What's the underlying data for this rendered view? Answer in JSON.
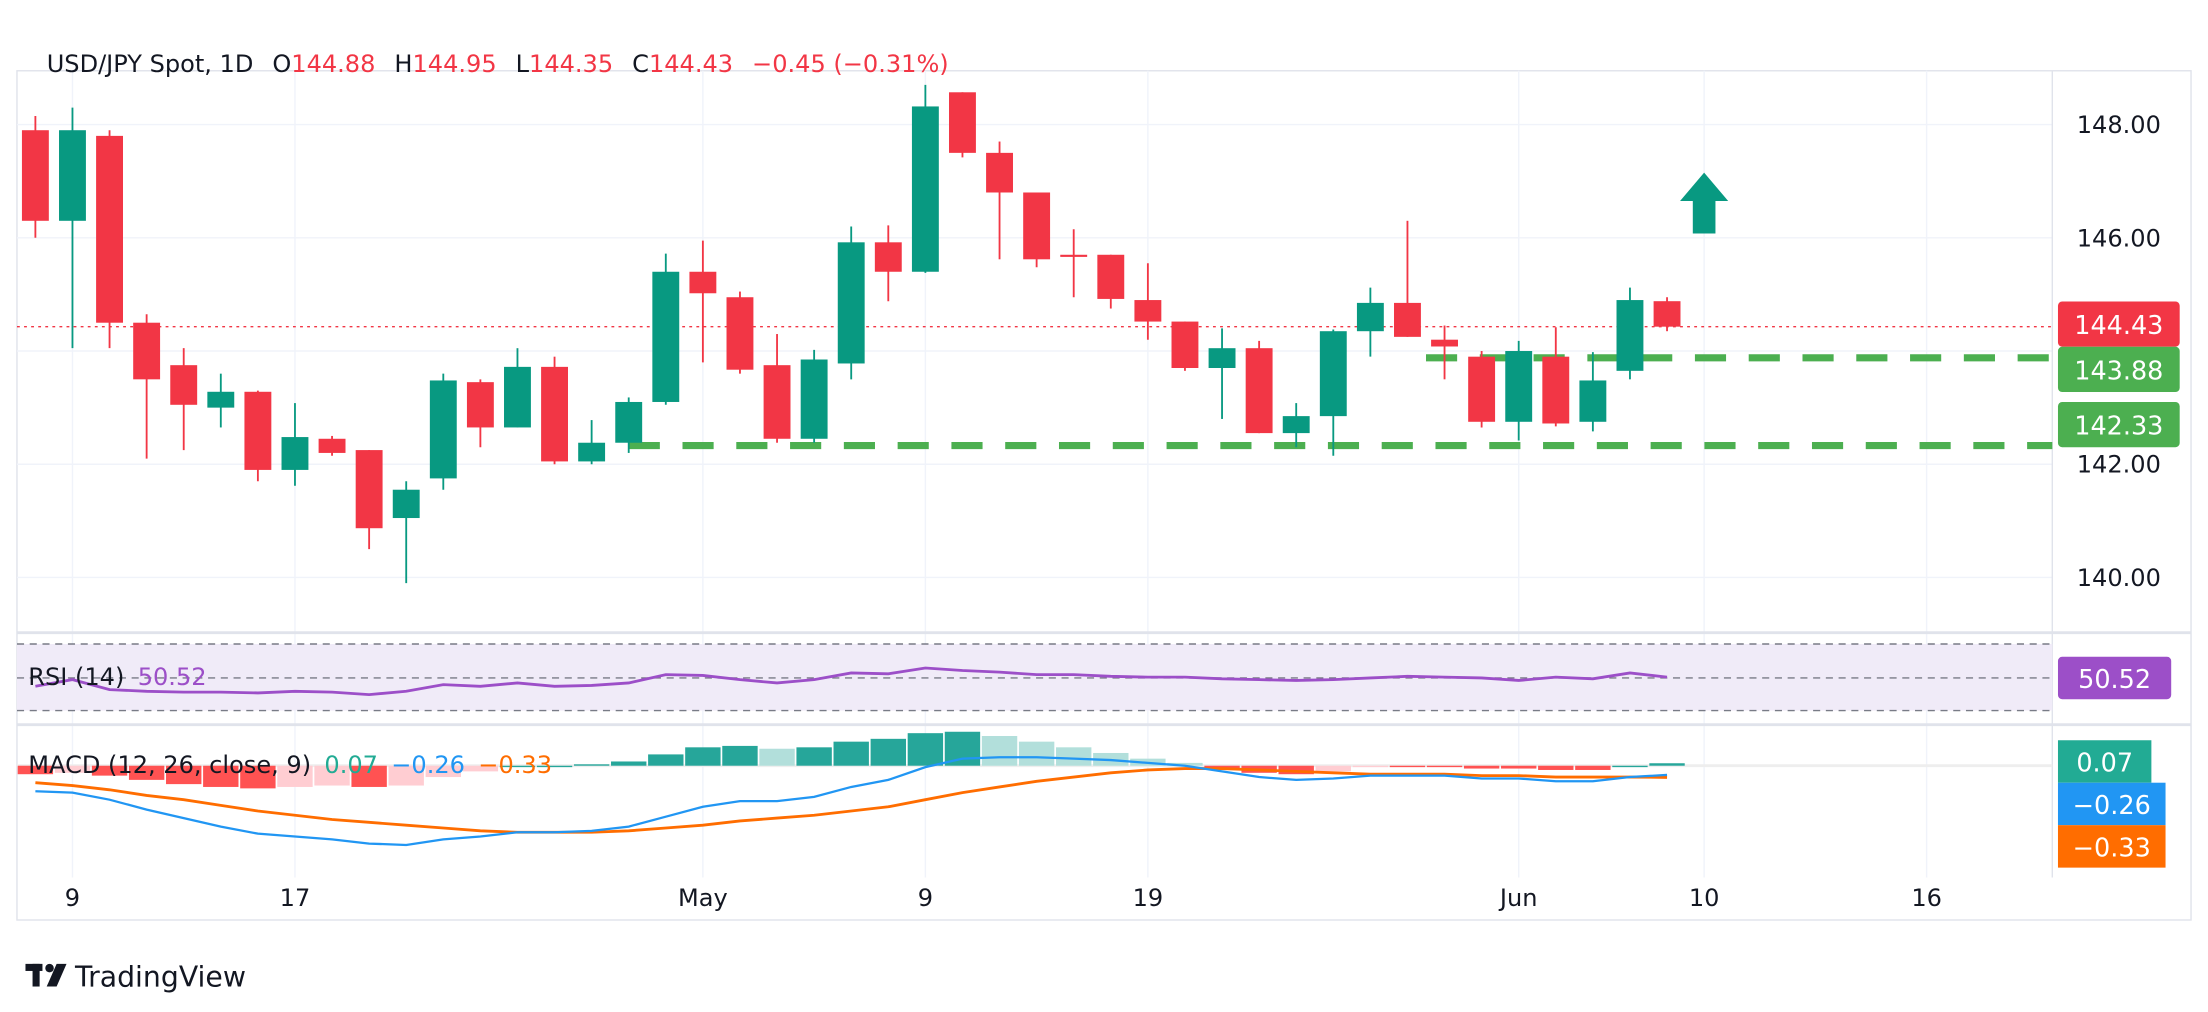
{
  "header": {
    "symbol": "USD/JPY Spot, 1D",
    "o_label": "O",
    "o_value": "144.88",
    "h_label": "H",
    "h_value": "144.95",
    "l_label": "L",
    "l_value": "144.35",
    "c_label": "C",
    "c_value": "144.43",
    "change": "−0.45 (−0.31%)"
  },
  "colors": {
    "up": "#089981",
    "down": "#f23645",
    "level": "#4caf50",
    "rsi": "#9c4fc8",
    "macd": "#2196f3",
    "signal": "#ff6d00",
    "hist_up": "#26a69a",
    "hist_up_light": "#b2dfdb",
    "hist_down": "#ff5252",
    "hist_down_light": "#ffcdd2"
  },
  "price_axis": {
    "ticks": [
      "148.00",
      "146.00",
      "142.00",
      "140.00"
    ],
    "tick_values": [
      148,
      146,
      142,
      140
    ]
  },
  "price_labels": {
    "last": "144.43",
    "level1": "143.88",
    "level2": "142.33"
  },
  "rsi": {
    "label": "RSI (14)",
    "value": "50.52"
  },
  "macd": {
    "label": "MACD (12, 26, close, 9)",
    "hist_value": "0.07",
    "macd_value": "−0.26",
    "signal_value": "−0.33"
  },
  "time_axis": [
    {
      "label": "9",
      "index": 1
    },
    {
      "label": "17",
      "index": 7
    },
    {
      "label": "May",
      "index": 18
    },
    {
      "label": "9",
      "index": 24
    },
    {
      "label": "19",
      "index": 30
    },
    {
      "label": "Jun",
      "index": 40
    },
    {
      "label": "10",
      "index": 45
    },
    {
      "label": "16",
      "index": 51
    }
  ],
  "logo": "TradingView",
  "chart_data": {
    "type": "candlestick",
    "title": "USD/JPY Spot, 1D",
    "ylim": [
      139,
      149
    ],
    "levels": [
      {
        "value": 143.88,
        "from_index": 37.5
      },
      {
        "value": 142.33,
        "from_index": 16
      }
    ],
    "last_price": 144.43,
    "arrow": {
      "direction": "up",
      "index": 45,
      "price": 146.4
    },
    "ohlc": [
      [
        147.9,
        148.15,
        146.0,
        146.3
      ],
      [
        146.3,
        148.3,
        144.05,
        147.9
      ],
      [
        147.8,
        147.9,
        144.05,
        144.5
      ],
      [
        144.5,
        144.65,
        142.1,
        143.5
      ],
      [
        143.75,
        144.05,
        142.25,
        143.05
      ],
      [
        143.0,
        143.6,
        142.65,
        143.28
      ],
      [
        143.28,
        143.3,
        141.7,
        141.9
      ],
      [
        141.9,
        143.08,
        141.62,
        142.48
      ],
      [
        142.45,
        142.5,
        142.15,
        142.2
      ],
      [
        142.25,
        142.25,
        140.5,
        140.87
      ],
      [
        141.05,
        141.7,
        139.9,
        141.55
      ],
      [
        141.75,
        143.6,
        141.55,
        143.48
      ],
      [
        143.45,
        143.5,
        142.3,
        142.65
      ],
      [
        142.65,
        144.05,
        142.65,
        143.72
      ],
      [
        143.72,
        143.9,
        142.0,
        142.05
      ],
      [
        142.05,
        142.78,
        142.0,
        142.38
      ],
      [
        142.38,
        143.18,
        142.2,
        143.1
      ],
      [
        143.1,
        145.72,
        143.05,
        145.4
      ],
      [
        145.4,
        145.95,
        143.8,
        145.02
      ],
      [
        144.95,
        145.05,
        143.6,
        143.67
      ],
      [
        143.75,
        144.3,
        142.38,
        142.45
      ],
      [
        142.45,
        144.02,
        142.38,
        143.85
      ],
      [
        143.78,
        146.2,
        143.5,
        145.92
      ],
      [
        145.92,
        146.22,
        144.88,
        145.4
      ],
      [
        145.4,
        148.7,
        145.38,
        148.32
      ],
      [
        148.57,
        148.57,
        147.42,
        147.5
      ],
      [
        147.5,
        147.7,
        145.62,
        146.8
      ],
      [
        146.8,
        146.8,
        145.48,
        145.62
      ],
      [
        145.7,
        146.15,
        144.95,
        145.68
      ],
      [
        145.7,
        145.7,
        144.75,
        144.92
      ],
      [
        144.9,
        145.55,
        144.2,
        144.52
      ],
      [
        144.52,
        144.52,
        143.65,
        143.7
      ],
      [
        143.7,
        144.4,
        142.8,
        144.05
      ],
      [
        144.05,
        144.18,
        142.55,
        142.55
      ],
      [
        142.55,
        143.08,
        142.3,
        142.85
      ],
      [
        142.85,
        144.38,
        142.15,
        144.35
      ],
      [
        144.35,
        145.12,
        143.9,
        144.85
      ],
      [
        144.85,
        146.3,
        144.25,
        144.25
      ],
      [
        144.2,
        144.45,
        143.5,
        144.08
      ],
      [
        143.9,
        144.0,
        142.65,
        142.75
      ],
      [
        142.75,
        144.18,
        142.42,
        144.0
      ],
      [
        143.9,
        144.42,
        142.67,
        142.72
      ],
      [
        142.75,
        143.98,
        142.58,
        143.48
      ],
      [
        143.65,
        145.12,
        143.5,
        144.9
      ],
      [
        144.88,
        144.95,
        144.35,
        144.43
      ]
    ],
    "rsi_values": [
      45,
      49,
      43,
      42,
      41.5,
      41.5,
      41,
      42,
      41.5,
      40,
      42,
      46,
      45,
      47,
      45,
      45.5,
      47,
      52,
      51.5,
      49,
      47,
      49,
      53,
      52.5,
      56,
      54.5,
      53.5,
      52,
      52,
      51,
      50.5,
      50.5,
      49.5,
      49,
      48.5,
      49,
      50,
      51,
      50.5,
      50,
      48.5,
      50.5,
      49.5,
      53,
      50.52
    ],
    "macd_values": [
      -0.72,
      -0.76,
      -0.96,
      -1.24,
      -1.48,
      -1.72,
      -1.92,
      -2.0,
      -2.08,
      -2.2,
      -2.24,
      -2.08,
      -2.0,
      -1.88,
      -1.88,
      -1.84,
      -1.72,
      -1.44,
      -1.16,
      -1.0,
      -1.0,
      -0.88,
      -0.6,
      -0.4,
      -0.04,
      0.2,
      0.24,
      0.24,
      0.2,
      0.16,
      0.08,
      0,
      -0.16,
      -0.32,
      -0.4,
      -0.36,
      -0.28,
      -0.28,
      -0.28,
      -0.36,
      -0.36,
      -0.44,
      -0.44,
      -0.32,
      -0.26
    ],
    "signal_values": [
      -0.48,
      -0.56,
      -0.68,
      -0.84,
      -0.96,
      -1.12,
      -1.28,
      -1.4,
      -1.52,
      -1.6,
      -1.68,
      -1.76,
      -1.84,
      -1.88,
      -1.88,
      -1.88,
      -1.84,
      -1.76,
      -1.68,
      -1.56,
      -1.48,
      -1.4,
      -1.28,
      -1.16,
      -0.96,
      -0.76,
      -0.6,
      -0.44,
      -0.32,
      -0.2,
      -0.12,
      -0.08,
      -0.08,
      -0.12,
      -0.16,
      -0.2,
      -0.24,
      -0.24,
      -0.24,
      -0.28,
      -0.28,
      -0.32,
      -0.32,
      -0.32,
      -0.33
    ]
  }
}
